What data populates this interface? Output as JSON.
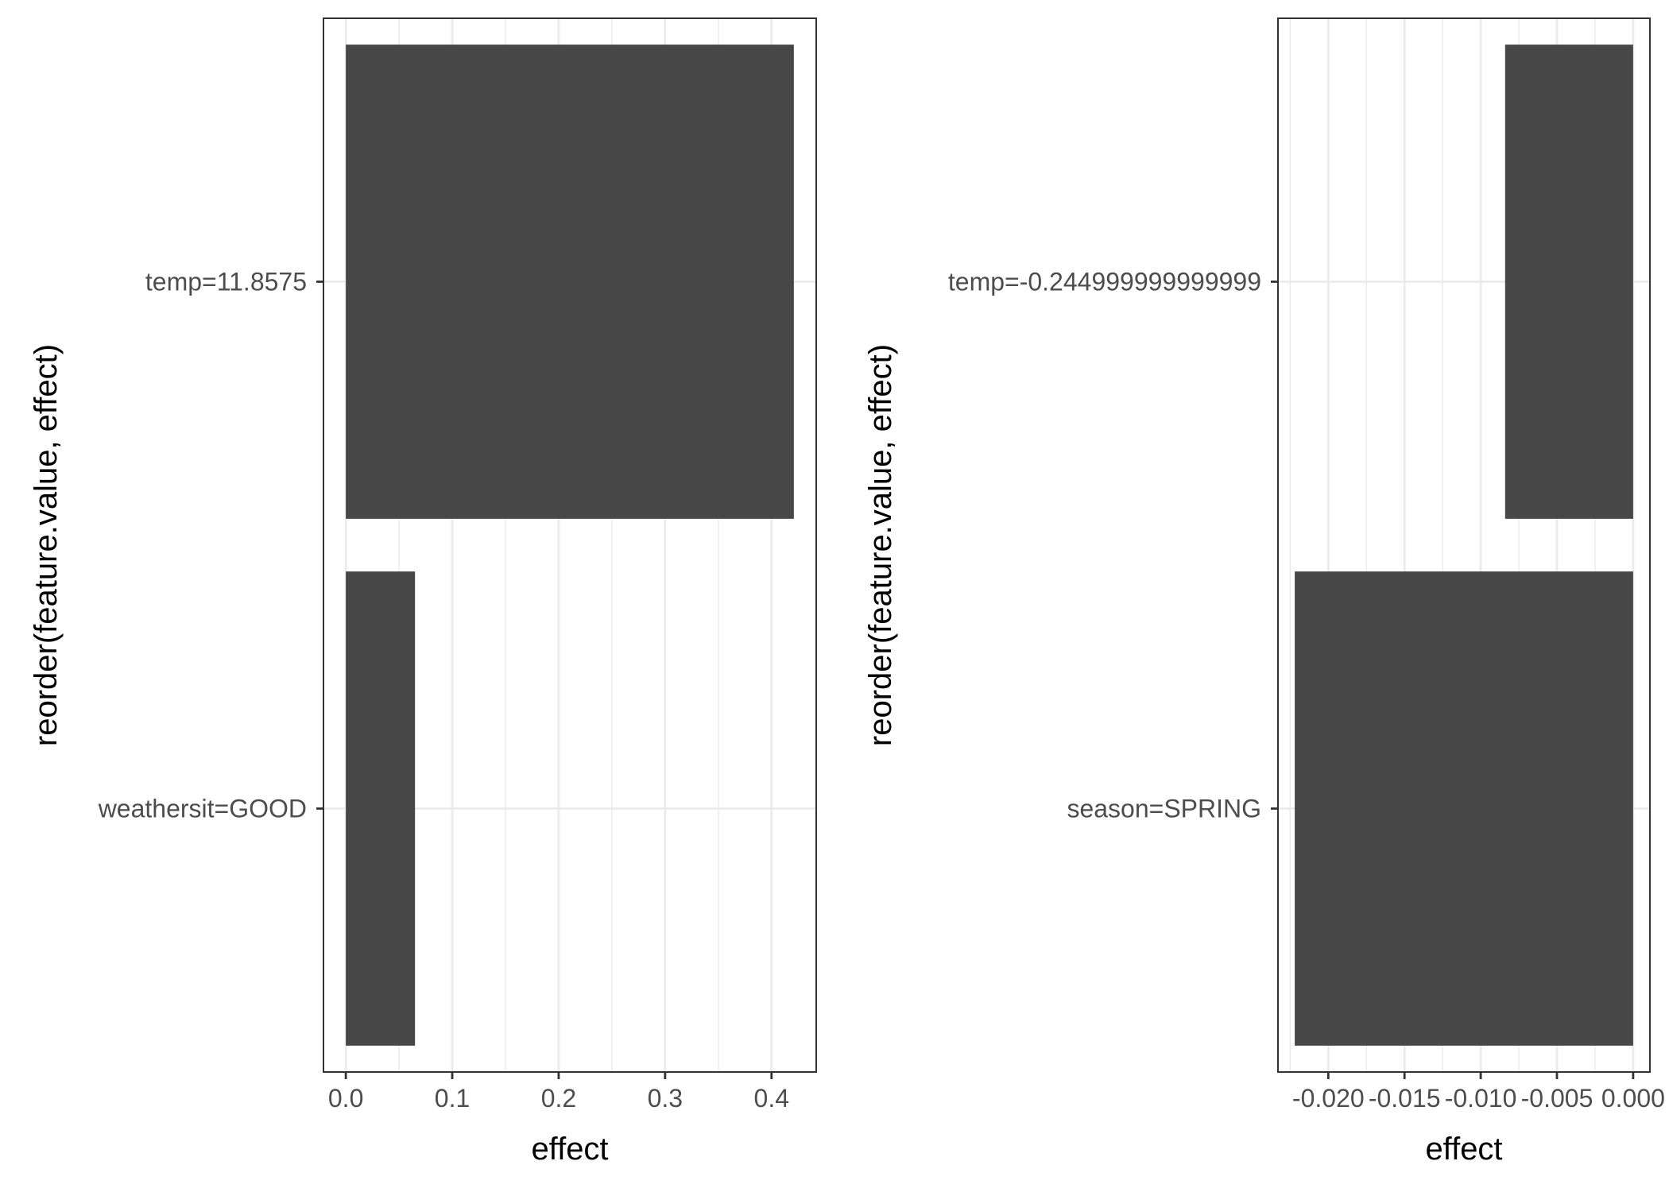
{
  "chart_data": [
    {
      "type": "bar",
      "orientation": "horizontal",
      "categories": [
        "temp=11.8575",
        "weathersit=GOOD"
      ],
      "values": [
        0.421,
        0.065
      ],
      "xlabel": "effect",
      "ylabel": "reorder(feature.value, effect)",
      "xlim": [
        -0.021,
        0.442
      ],
      "xticks": [
        0.0,
        0.1,
        0.2,
        0.3,
        0.4
      ],
      "xtick_labels": [
        "0.0",
        "0.1",
        "0.2",
        "0.3",
        "0.4"
      ],
      "grid": true,
      "bar_color": "#474747",
      "grid_color": "#ebebeb"
    },
    {
      "type": "bar",
      "orientation": "horizontal",
      "categories": [
        "temp=-0.244999999999999",
        "season=SPRING"
      ],
      "values": [
        -0.0084,
        -0.0222
      ],
      "xlabel": "effect",
      "ylabel": "reorder(feature.value, effect)",
      "xlim": [
        -0.0233,
        0.0011
      ],
      "xticks": [
        -0.02,
        -0.015,
        -0.01,
        -0.005,
        0.0
      ],
      "xtick_labels": [
        "-0.020",
        "-0.015",
        "-0.010",
        "-0.005",
        "0.000"
      ],
      "grid": true,
      "bar_color": "#474747",
      "grid_color": "#ebebeb"
    }
  ]
}
